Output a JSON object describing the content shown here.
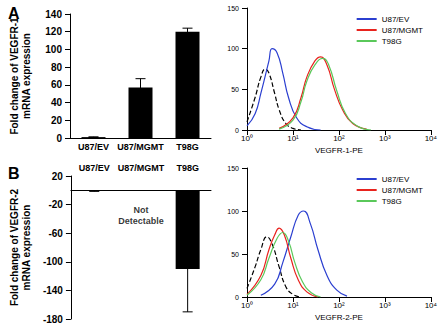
{
  "chart_data": [
    {
      "type": "bar",
      "title": "A",
      "categories": [
        "U87/EV",
        "U87/MGMT",
        "T98G"
      ],
      "values": [
        1,
        57,
        120
      ],
      "errors": [
        0.3,
        10,
        4
      ],
      "color": "#000000",
      "ylabel": "Fold change of VEGFR-1\nmRNA expression",
      "ylim": [
        0,
        140
      ],
      "yticks": [
        0,
        20,
        40,
        60,
        80,
        100,
        120,
        140
      ],
      "grid": false
    },
    {
      "type": "line",
      "xlabel": "VEGFR-1-PE",
      "log": "x",
      "xlim": [
        1,
        10000
      ],
      "xticks": [
        {
          "value": 1,
          "label": "10⁰"
        },
        {
          "value": 10,
          "label": "10¹"
        },
        {
          "value": 100,
          "label": "10²"
        },
        {
          "value": 1000,
          "label": "10³"
        },
        {
          "value": 10000,
          "label": "10⁴"
        }
      ],
      "ylim": [
        0,
        150
      ],
      "yticks": [
        0,
        50,
        100,
        150
      ],
      "grid": false,
      "legend": "upper right",
      "series": [
        {
          "color": "#000000",
          "line_style": "dashed",
          "x": [
            1,
            1.5,
            2,
            2.5,
            3,
            4,
            5,
            7,
            10,
            15
          ],
          "values": [
            10,
            40,
            65,
            75,
            70,
            45,
            25,
            8,
            2,
            0
          ]
        },
        {
          "name": "U87/EV",
          "color": "#2b3fd0",
          "line_style": "solid",
          "x": [
            1,
            1.5,
            2,
            3,
            3.5,
            4.5,
            6,
            8,
            12,
            20,
            40
          ],
          "values": [
            5,
            20,
            45,
            85,
            100,
            95,
            70,
            40,
            15,
            4,
            0
          ]
        },
        {
          "name": "U87/MGMT",
          "color": "#e8231e",
          "line_style": "solid",
          "x": [
            5,
            10,
            15,
            20,
            30,
            40,
            55,
            80,
            120,
            200,
            400
          ],
          "values": [
            2,
            15,
            40,
            65,
            85,
            90,
            80,
            50,
            25,
            8,
            1
          ]
        },
        {
          "name": "T98G",
          "color": "#5ac85a",
          "line_style": "solid",
          "x": [
            5,
            10,
            15,
            20,
            30,
            45,
            60,
            90,
            140,
            250,
            500
          ],
          "values": [
            1,
            12,
            35,
            60,
            80,
            88,
            80,
            48,
            20,
            5,
            0
          ]
        }
      ]
    },
    {
      "type": "bar",
      "title": "B",
      "categories": [
        "U87/EV",
        "U87/MGMT",
        "T98G"
      ],
      "values": [
        -1,
        null,
        -110
      ],
      "errors": [
        0.5,
        null,
        60
      ],
      "color": "#000000",
      "ylabel": "Fold change of VEGFR-2\nmRNA expression",
      "ylim": [
        -180,
        20
      ],
      "yticks": [
        -180,
        -140,
        -100,
        -60,
        -20,
        20
      ],
      "grid": false,
      "annotations": [
        {
          "text": "Not\nDetectable",
          "x": "U87/MGMT",
          "y": -35
        }
      ]
    },
    {
      "type": "line",
      "xlabel": "VEGFR-2-PE",
      "log": "x",
      "xlim": [
        1,
        10000
      ],
      "xticks": [
        {
          "value": 1,
          "label": "10⁰"
        },
        {
          "value": 10,
          "label": "10¹"
        },
        {
          "value": 100,
          "label": "10²"
        },
        {
          "value": 1000,
          "label": "10³"
        },
        {
          "value": 10000,
          "label": "10⁴"
        }
      ],
      "ylim": [
        0,
        150
      ],
      "yticks": [
        0,
        50,
        100,
        150
      ],
      "grid": false,
      "legend": "upper right",
      "series": [
        {
          "color": "#000000",
          "line_style": "dashed",
          "x": [
            1,
            1.5,
            2,
            2.7,
            3.5,
            5,
            7,
            10,
            15
          ],
          "values": [
            10,
            35,
            55,
            70,
            62,
            35,
            12,
            3,
            0
          ]
        },
        {
          "name": "U87/EV",
          "color": "#2b3fd0",
          "line_style": "solid",
          "x": [
            2,
            4,
            6,
            9,
            13,
            17,
            24,
            35,
            55,
            90,
            150
          ],
          "values": [
            2,
            15,
            40,
            70,
            95,
            100,
            85,
            55,
            25,
            8,
            1
          ]
        },
        {
          "name": "U87/MGMT",
          "color": "#e8231e",
          "line_style": "solid",
          "x": [
            1,
            2,
            3,
            4,
            5,
            6.5,
            9,
            13,
            20,
            35
          ],
          "values": [
            3,
            25,
            55,
            72,
            80,
            72,
            45,
            20,
            6,
            0
          ]
        },
        {
          "name": "T98G",
          "color": "#5ac85a",
          "line_style": "solid",
          "x": [
            1,
            2,
            3,
            4.5,
            6,
            8,
            11,
            16,
            25,
            40
          ],
          "values": [
            2,
            20,
            45,
            68,
            75,
            65,
            40,
            18,
            5,
            0
          ]
        }
      ]
    }
  ]
}
